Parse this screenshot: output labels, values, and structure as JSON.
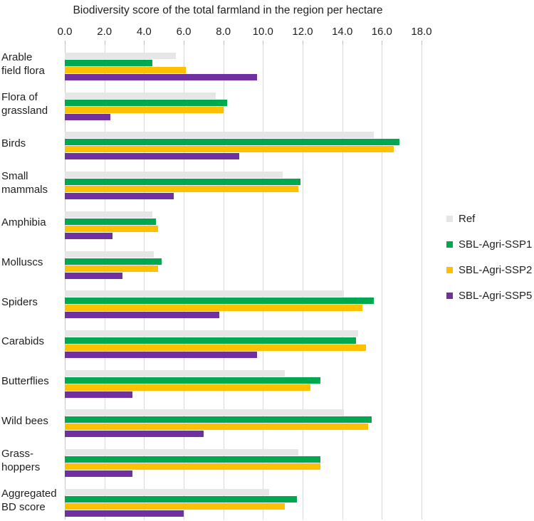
{
  "chart_data": {
    "type": "bar",
    "orientation": "horizontal",
    "title": "Biodiversity score of the total farmland in the region per hectare",
    "xlabel": "",
    "ylabel": "",
    "xlim": [
      0,
      18
    ],
    "tick_step": 2,
    "x_tick_labels": [
      "0.0",
      "2.0",
      "4.0",
      "6.0",
      "8.0",
      "10.0",
      "12.0",
      "14.0",
      "16.0",
      "18.0"
    ],
    "grid": true,
    "legend_position": "right",
    "categories": [
      "Arable field flora",
      "Flora of grassland",
      "Birds",
      "Small mammals",
      "Amphibia",
      "Molluscs",
      "Spiders",
      "Carabids",
      "Butterflies",
      "Wild bees",
      "Grass-hoppers",
      "Aggregated BD score"
    ],
    "series": [
      {
        "name": "Ref",
        "color": "#e7e6e6",
        "values": [
          5.6,
          7.6,
          15.6,
          11.0,
          4.4,
          4.5,
          14.1,
          14.8,
          11.1,
          14.1,
          11.8,
          10.3
        ]
      },
      {
        "name": "SBL-Agri-SSP1",
        "color": "#00a850",
        "values": [
          4.4,
          8.2,
          16.9,
          11.9,
          4.6,
          4.9,
          15.6,
          14.7,
          12.9,
          15.5,
          12.9,
          11.7
        ]
      },
      {
        "name": "SBL-Agri-SSP2",
        "color": "#ffc000",
        "values": [
          6.1,
          8.0,
          16.6,
          11.8,
          4.7,
          4.7,
          15.0,
          15.2,
          12.4,
          15.3,
          12.9,
          11.1
        ]
      },
      {
        "name": "SBL-Agri-SSP5",
        "color": "#7030a0",
        "values": [
          9.7,
          2.3,
          8.8,
          5.5,
          2.4,
          2.9,
          7.8,
          9.7,
          3.4,
          7.0,
          3.4,
          6.0
        ]
      }
    ]
  },
  "category_label_lines": [
    [
      "Arable",
      "field flora"
    ],
    [
      "Flora of",
      "grassland"
    ],
    [
      "Birds"
    ],
    [
      "Small",
      "mammals"
    ],
    [
      "Amphibia"
    ],
    [
      "Molluscs"
    ],
    [
      "Spiders"
    ],
    [
      "Carabids"
    ],
    [
      "Butterflies"
    ],
    [
      "Wild bees"
    ],
    [
      "Grass-",
      "hoppers"
    ],
    [
      "Aggregated",
      "BD score"
    ]
  ],
  "legend": {
    "items": [
      "Ref",
      "SBL-Agri-SSP1",
      "SBL-Agri-SSP2",
      "SBL-Agri-SSP5"
    ]
  }
}
